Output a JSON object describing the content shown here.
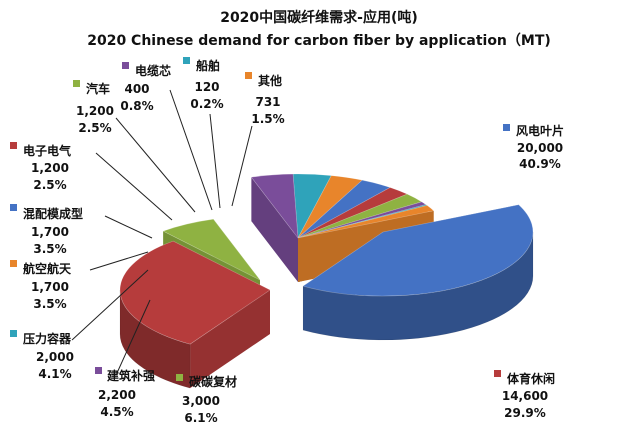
{
  "chart_data": {
    "type": "pie",
    "title": "2020中国碳纤维需求-应用(吨)",
    "subtitle": "2020 Chinese demand for carbon fiber by application（MT)",
    "style": "3d-exploded",
    "slices": [
      {
        "name": "风电叶片",
        "value": 20000,
        "value_label": "20,000",
        "percent": "40.9%",
        "color": "#4472C4"
      },
      {
        "name": "体育休闲",
        "value": 14600,
        "value_label": "14,600",
        "percent": "29.9%",
        "color": "#B63C3C"
      },
      {
        "name": "碳碳复材",
        "value": 3000,
        "value_label": "3,000",
        "percent": "6.1%",
        "color": "#8FB242"
      },
      {
        "name": "建筑补强",
        "value": 2200,
        "value_label": "2,200",
        "percent": "4.5%",
        "color": "#7A4D9A"
      },
      {
        "name": "压力容器",
        "value": 2000,
        "value_label": "2,000",
        "percent": "4.1%",
        "color": "#2FA3BA"
      },
      {
        "name": "航空航天",
        "value": 1700,
        "value_label": "1,700",
        "percent": "3.5%",
        "color": "#E8852B"
      },
      {
        "name": "混配模成型",
        "value": 1700,
        "value_label": "1,700",
        "percent": "3.5%",
        "color": "#4472C4"
      },
      {
        "name": "电子电气",
        "value": 1200,
        "value_label": "1,200",
        "percent": "2.5%",
        "color": "#B63C3C"
      },
      {
        "name": "汽车",
        "value": 1200,
        "value_label": "1,200",
        "percent": "2.5%",
        "color": "#8FB242"
      },
      {
        "name": "电缆芯",
        "value": 400,
        "value_label": "400",
        "percent": "0.8%",
        "color": "#7A4D9A"
      },
      {
        "name": "船舶",
        "value": 120,
        "value_label": "120",
        "percent": "0.2%",
        "color": "#2FA3BA"
      },
      {
        "name": "其他",
        "value": 731,
        "value_label": "731",
        "percent": "1.5%",
        "color": "#E8852B"
      }
    ]
  }
}
